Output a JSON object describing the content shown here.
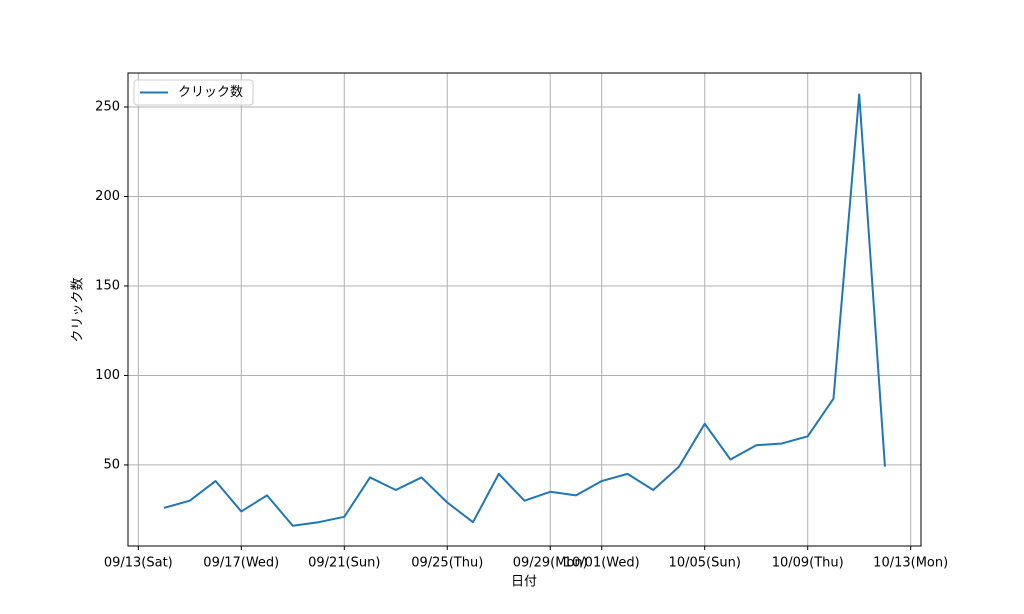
{
  "chart_data": {
    "type": "line",
    "x_label": "日付",
    "y_label": "クリック数",
    "x": [
      "09/14",
      "09/15",
      "09/16",
      "09/17",
      "09/18",
      "09/19",
      "09/20",
      "09/21",
      "09/22",
      "09/23",
      "09/24",
      "09/25",
      "09/26",
      "09/27",
      "09/28",
      "09/29",
      "09/30",
      "10/01",
      "10/02",
      "10/03",
      "10/04",
      "10/05",
      "10/06",
      "10/07",
      "10/08",
      "10/09",
      "10/10",
      "10/11",
      "10/12"
    ],
    "series": [
      {
        "name": "クリック数",
        "color": "#1f77b4",
        "values": [
          26,
          30,
          41,
          24,
          33,
          16,
          18,
          21,
          43,
          36,
          43,
          29,
          18,
          45,
          30,
          35,
          33,
          41,
          45,
          36,
          49,
          73,
          53,
          61,
          62,
          66,
          87,
          257,
          49
        ]
      }
    ],
    "xticks": [
      {
        "value": "09/13",
        "label": "09/13(Sat)"
      },
      {
        "value": "09/17",
        "label": "09/17(Wed)"
      },
      {
        "value": "09/21",
        "label": "09/21(Sun)"
      },
      {
        "value": "09/25",
        "label": "09/25(Thu)"
      },
      {
        "value": "09/29",
        "label": "09/29(Mon)"
      },
      {
        "value": "10/01",
        "label": "10/01(Wed)"
      },
      {
        "value": "10/05",
        "label": "10/05(Sun)"
      },
      {
        "value": "10/09",
        "label": "10/09(Thu)"
      },
      {
        "value": "10/13",
        "label": "10/13(Mon)"
      }
    ],
    "ylim": [
      4.7,
      269
    ],
    "yticks": [
      50,
      100,
      150,
      200,
      250
    ],
    "grid": true,
    "legend": "upper-left"
  }
}
